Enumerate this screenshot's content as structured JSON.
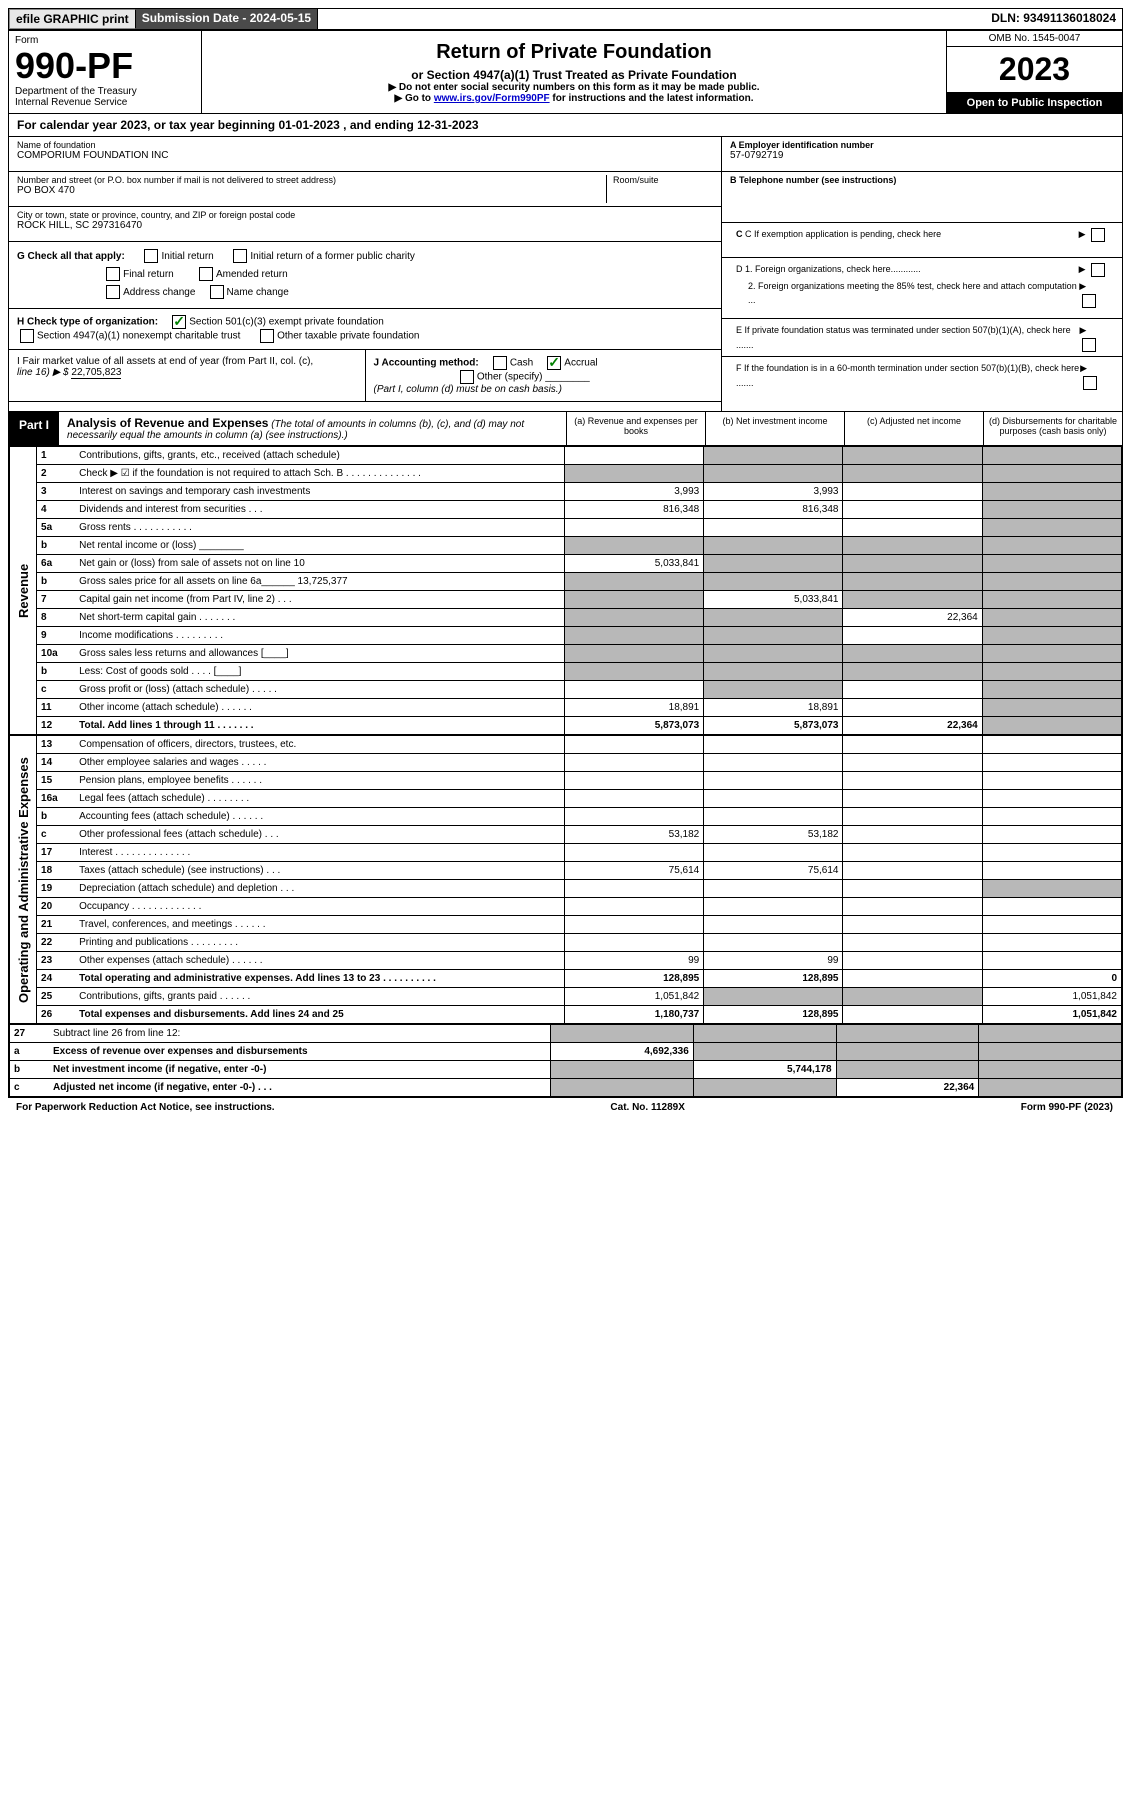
{
  "topbar": {
    "efile": "efile GRAPHIC print",
    "subdate_label": "Submission Date - ",
    "subdate": "2024-05-15",
    "dln_label": "DLN: ",
    "dln": "93491136018024"
  },
  "header": {
    "form_label": "Form",
    "form_no": "990-PF",
    "dept": "Department of the Treasury",
    "irs": "Internal Revenue Service",
    "title": "Return of Private Foundation",
    "subtitle": "or Section 4947(a)(1) Trust Treated as Private Foundation",
    "instr1": "▶ Do not enter social security numbers on this form as it may be made public.",
    "instr2": "▶ Go to ",
    "instr_link": "www.irs.gov/Form990PF",
    "instr3": " for instructions and the latest information.",
    "omb": "OMB No. 1545-0047",
    "year": "2023",
    "inspection": "Open to Public Inspection"
  },
  "cal_year": "For calendar year 2023, or tax year beginning 01-01-2023                     , and ending 12-31-2023",
  "foundation": {
    "name_label": "Name of foundation",
    "name": "COMPORIUM FOUNDATION INC",
    "street_label": "Number and street (or P.O. box number if mail is not delivered to street address)",
    "street": "PO BOX 470",
    "room_label": "Room/suite",
    "city_label": "City or town, state or province, country, and ZIP or foreign postal code",
    "city": "ROCK HILL, SC  297316470"
  },
  "right_info": {
    "a_label": "A Employer identification number",
    "a_value": "57-0792719",
    "b_label": "B Telephone number (see instructions)",
    "c_label": "C If exemption application is pending, check here",
    "d1": "D 1. Foreign organizations, check here............",
    "d2": "2. Foreign organizations meeting the 85% test, check here and attach computation ...",
    "e": "E  If private foundation status was terminated under section 507(b)(1)(A), check here .......",
    "f": "F  If the foundation is in a 60-month termination under section 507(b)(1)(B), check here .......",
    "arrow": "▶"
  },
  "g": {
    "label": "G Check all that apply:",
    "opts": [
      "Initial return",
      "Initial return of a former public charity",
      "Final return",
      "Amended return",
      "Address change",
      "Name change"
    ]
  },
  "h": {
    "label": "H Check type of organization:",
    "opt1": "Section 501(c)(3) exempt private foundation",
    "opt2": "Section 4947(a)(1) nonexempt charitable trust",
    "opt3": "Other taxable private foundation"
  },
  "i": {
    "label": "I Fair market value of all assets at end of year (from Part II, col. (c),",
    "line": "line 16) ▶ $ ",
    "value": "22,705,823"
  },
  "j": {
    "label": "J Accounting method:",
    "cash": "Cash",
    "accrual": "Accrual",
    "other": "Other (specify)",
    "note": "(Part I, column (d) must be on cash basis.)"
  },
  "part1": {
    "label": "Part I",
    "title": "Analysis of Revenue and Expenses",
    "desc": "(The total of amounts in columns (b), (c), and (d) may not necessarily equal the amounts in column (a) (see instructions).)",
    "col_a": "(a)   Revenue and expenses per books",
    "col_b": "(b)   Net investment income",
    "col_c": "(c)   Adjusted net income",
    "col_d": "(d)   Disbursements for charitable purposes (cash basis only)"
  },
  "side_labels": {
    "revenue": "Revenue",
    "expenses": "Operating and Administrative Expenses"
  },
  "rows": [
    {
      "n": "1",
      "d": "Contributions, gifts, grants, etc., received (attach schedule)",
      "a": "",
      "b": "s",
      "c": "s",
      "de": "s"
    },
    {
      "n": "2",
      "d": "Check ▶ ☑ if the foundation is not required to attach Sch. B      .    .    .    .    .    .    .    .    .    .    .    .    .    .",
      "a": "s",
      "b": "s",
      "c": "s",
      "de": "s"
    },
    {
      "n": "3",
      "d": "Interest on savings and temporary cash investments",
      "a": "3,993",
      "b": "3,993",
      "c": "",
      "de": "s"
    },
    {
      "n": "4",
      "d": "Dividends and interest from securities      .    .    .",
      "a": "816,348",
      "b": "816,348",
      "c": "",
      "de": "s"
    },
    {
      "n": "5a",
      "d": "Gross rents      .    .    .    .    .    .    .    .    .    .    .",
      "a": "",
      "b": "",
      "c": "",
      "de": "s"
    },
    {
      "n": "b",
      "d": "Net rental income or (loss) ________",
      "a": "s",
      "b": "s",
      "c": "s",
      "de": "s"
    },
    {
      "n": "6a",
      "d": "Net gain or (loss) from sale of assets not on line 10",
      "a": "5,033,841",
      "b": "s",
      "c": "s",
      "de": "s"
    },
    {
      "n": "b",
      "d": "Gross sales price for all assets on line 6a______ 13,725,377",
      "a": "s",
      "b": "s",
      "c": "s",
      "de": "s"
    },
    {
      "n": "7",
      "d": "Capital gain net income (from Part IV, line 2)    .   .   .",
      "a": "s",
      "b": "5,033,841",
      "c": "s",
      "de": "s"
    },
    {
      "n": "8",
      "d": "Net short-term capital gain   .    .    .    .    .    .    .",
      "a": "s",
      "b": "s",
      "c": "22,364",
      "de": "s"
    },
    {
      "n": "9",
      "d": "Income modifications   .    .    .    .    .    .    .    .    .",
      "a": "s",
      "b": "s",
      "c": "",
      "de": "s"
    },
    {
      "n": "10a",
      "d": "Gross sales less returns and allowances   [____]",
      "a": "s",
      "b": "s",
      "c": "s",
      "de": "s"
    },
    {
      "n": "b",
      "d": "Less: Cost of goods sold    .    .    .    .    [____]",
      "a": "s",
      "b": "s",
      "c": "s",
      "de": "s"
    },
    {
      "n": "c",
      "d": "Gross profit or (loss) (attach schedule)    .    .    .    .    .",
      "a": "",
      "b": "s",
      "c": "",
      "de": "s"
    },
    {
      "n": "11",
      "d": "Other income (attach schedule)    .    .    .    .    .    .",
      "a": "18,891",
      "b": "18,891",
      "c": "",
      "de": "s"
    },
    {
      "n": "12",
      "d": "Total. Add lines 1 through 11    .    .    .    .    .    .    .",
      "a": "5,873,073",
      "b": "5,873,073",
      "c": "22,364",
      "de": "s",
      "bold": true
    }
  ],
  "exp_rows": [
    {
      "n": "13",
      "d": "Compensation of officers, directors, trustees, etc.",
      "a": "",
      "b": "",
      "c": "",
      "de": ""
    },
    {
      "n": "14",
      "d": "Other employee salaries and wages    .    .    .    .    .",
      "a": "",
      "b": "",
      "c": "",
      "de": ""
    },
    {
      "n": "15",
      "d": "Pension plans, employee benefits   .    .    .    .    .    .",
      "a": "",
      "b": "",
      "c": "",
      "de": ""
    },
    {
      "n": "16a",
      "d": "Legal fees (attach schedule)   .    .    .    .    .    .    .    .",
      "a": "",
      "b": "",
      "c": "",
      "de": ""
    },
    {
      "n": "b",
      "d": "Accounting fees (attach schedule)   .    .    .    .    .    .",
      "a": "",
      "b": "",
      "c": "",
      "de": ""
    },
    {
      "n": "c",
      "d": "Other professional fees (attach schedule)    .    .    .",
      "a": "53,182",
      "b": "53,182",
      "c": "",
      "de": ""
    },
    {
      "n": "17",
      "d": "Interest   .    .    .    .    .    .    .    .    .    .    .    .    .    .",
      "a": "",
      "b": "",
      "c": "",
      "de": ""
    },
    {
      "n": "18",
      "d": "Taxes (attach schedule) (see instructions)     .    .    .",
      "a": "75,614",
      "b": "75,614",
      "c": "",
      "de": ""
    },
    {
      "n": "19",
      "d": "Depreciation (attach schedule) and depletion    .    .    .",
      "a": "",
      "b": "",
      "c": "",
      "de": "s"
    },
    {
      "n": "20",
      "d": "Occupancy   .    .    .    .    .    .    .    .    .    .    .    .    .",
      "a": "",
      "b": "",
      "c": "",
      "de": ""
    },
    {
      "n": "21",
      "d": "Travel, conferences, and meetings   .    .    .    .    .    .",
      "a": "",
      "b": "",
      "c": "",
      "de": ""
    },
    {
      "n": "22",
      "d": "Printing and publications   .    .    .    .    .    .    .    .    .",
      "a": "",
      "b": "",
      "c": "",
      "de": ""
    },
    {
      "n": "23",
      "d": "Other expenses (attach schedule)   .    .    .    .    .    .",
      "a": "99",
      "b": "99",
      "c": "",
      "de": ""
    },
    {
      "n": "24",
      "d": "Total operating and administrative expenses. Add lines 13 to 23   .    .    .    .    .    .    .    .    .    .",
      "a": "128,895",
      "b": "128,895",
      "c": "",
      "de": "0",
      "bold": true
    },
    {
      "n": "25",
      "d": "Contributions, gifts, grants paid     .    .    .    .    .    .",
      "a": "1,051,842",
      "b": "s",
      "c": "s",
      "de": "1,051,842"
    },
    {
      "n": "26",
      "d": "Total expenses and disbursements. Add lines 24 and 25",
      "a": "1,180,737",
      "b": "128,895",
      "c": "",
      "de": "1,051,842",
      "bold": true
    }
  ],
  "final_rows": [
    {
      "n": "27",
      "d": "Subtract line 26 from line 12:",
      "a": "s",
      "b": "s",
      "c": "s",
      "de": "s"
    },
    {
      "n": "a",
      "d": "Excess of revenue over expenses and disbursements",
      "a": "4,692,336",
      "b": "s",
      "c": "s",
      "de": "s",
      "bold": true
    },
    {
      "n": "b",
      "d": "Net investment income (if negative, enter -0-)",
      "a": "s",
      "b": "5,744,178",
      "c": "s",
      "de": "s",
      "bold": true
    },
    {
      "n": "c",
      "d": "Adjusted net income (if negative, enter -0-)    .    .    .",
      "a": "s",
      "b": "s",
      "c": "22,364",
      "de": "s",
      "bold": true
    }
  ],
  "footer": {
    "left": "For Paperwork Reduction Act Notice, see instructions.",
    "center": "Cat. No. 11289X",
    "right": "Form 990-PF (2023)"
  }
}
